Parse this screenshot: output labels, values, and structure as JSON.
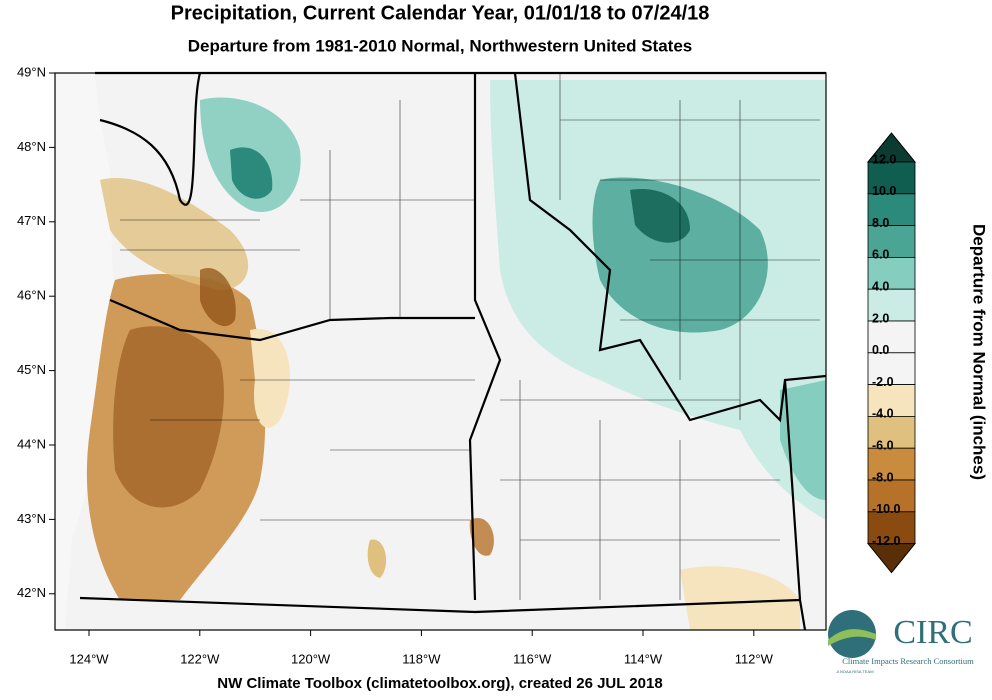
{
  "title": "Precipitation, Current Calendar Year, 01/01/18 to 07/24/18",
  "subtitle": "Departure from 1981-2010 Normal, Northwestern United States",
  "footer": "NW Climate Toolbox (climatetoolbox.org), created 26 JUL 2018",
  "map": {
    "lat_labels": [
      "49°N",
      "48°N",
      "47°N",
      "46°N",
      "45°N",
      "44°N",
      "43°N",
      "42°N"
    ],
    "lon_labels": [
      "124°W",
      "122°W",
      "120°W",
      "118°W",
      "116°W",
      "114°W",
      "112°W"
    ]
  },
  "colorbar": {
    "title": "Departure from Normal (inches)",
    "labels": [
      "12.0",
      "10.0",
      "8.0",
      "6.0",
      "4.0",
      "2.0",
      "0.0",
      "-2.0",
      "-4.0",
      "-6.0",
      "-8.0",
      "-10.0",
      "-12.0"
    ],
    "colors": [
      "#0c3b31",
      "#0f5e50",
      "#2b8a7b",
      "#4aa595",
      "#85cdbf",
      "#cbece4",
      "#f4f4f4",
      "#f4f4f4",
      "#f6e4bf",
      "#e0c07f",
      "#c98b3d",
      "#b7722a",
      "#8a4b10",
      "#5a2f08"
    ]
  },
  "logo": {
    "name": "CIRC",
    "full_name": "Climate Impacts Research Consortium",
    "tagline": "A NOAA RISA TEAM"
  }
}
